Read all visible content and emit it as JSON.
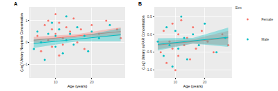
{
  "chart_data": [
    {
      "type": "scatter",
      "title": "A",
      "x_label": "Age (years)",
      "y_label": "(Log) Urinary Neopterin Concentration",
      "xlim": [
        3,
        29
      ],
      "xticks": [
        10,
        20
      ],
      "ylim": [
        -1.6,
        1.6
      ],
      "yticks": [
        -1,
        0,
        1
      ],
      "grid": true,
      "series": [
        {
          "name": "Female",
          "color": "#F8766D",
          "x": [
            5,
            6,
            7,
            8,
            8,
            9,
            9,
            10,
            10,
            11,
            11,
            12,
            12,
            13,
            14,
            15,
            16,
            17,
            18,
            20,
            22,
            24,
            27,
            28
          ],
          "values": [
            0.3,
            -0.4,
            0.8,
            0.1,
            1.0,
            -0.2,
            0.6,
            0.4,
            1.3,
            -0.6,
            0.9,
            0.2,
            -0.1,
            0.7,
            0.5,
            1.1,
            0.0,
            0.6,
            -0.3,
            0.8,
            0.4,
            1.0,
            0.6,
            0.2
          ],
          "fit": {
            "x": [
              4,
              16,
              28
            ],
            "values": [
              0.1,
              0.3,
              0.5
            ],
            "lower": [
              -0.05,
              0.22,
              0.3
            ],
            "upper": [
              0.25,
              0.38,
              0.7
            ]
          }
        },
        {
          "name": "Male",
          "color": "#00BFC4",
          "x": [
            4,
            5,
            6,
            7,
            8,
            9,
            10,
            10,
            11,
            12,
            13,
            13,
            14,
            15,
            16,
            18,
            19,
            20,
            22,
            25
          ],
          "values": [
            -0.3,
            0.5,
            0.0,
            -0.8,
            0.4,
            0.9,
            -0.2,
            0.3,
            0.6,
            -0.5,
            0.1,
            1.2,
            0.4,
            -0.1,
            0.7,
            0.3,
            -0.4,
            0.5,
            0.2,
            0.8
          ],
          "fit": {
            "x": [
              4,
              16,
              28
            ],
            "values": [
              -0.05,
              0.15,
              0.35
            ],
            "lower": [
              -0.25,
              0.05,
              0.05
            ],
            "upper": [
              0.15,
              0.25,
              0.65
            ]
          }
        }
      ]
    },
    {
      "type": "scatter",
      "title": "B",
      "x_label": "Age (years)",
      "y_label": "(Log) Urinary suPAR Concentration",
      "xlim": [
        3,
        29
      ],
      "xticks": [
        10,
        20
      ],
      "ylim": [
        -1.2,
        0.75
      ],
      "yticks": [
        {
          "value": -1,
          "label": "-1.0"
        },
        {
          "value": -0.5,
          "label": "-0.5"
        },
        {
          "value": 0,
          "label": "0.0"
        },
        {
          "value": 0.5,
          "label": "0.5"
        }
      ],
      "grid": true,
      "legend": "right",
      "legend_title": "Sex",
      "series": [
        {
          "name": "Female",
          "color": "#F8766D",
          "x": [
            5,
            6,
            7,
            8,
            9,
            9,
            10,
            11,
            11,
            12,
            13,
            14,
            15,
            16,
            17,
            19,
            21,
            23,
            26,
            28
          ],
          "values": [
            -0.5,
            0.1,
            -0.8,
            -0.2,
            0.3,
            -0.4,
            -1.0,
            0.0,
            -0.6,
            0.4,
            -0.3,
            -0.1,
            -0.7,
            0.2,
            -0.4,
            0.1,
            -0.2,
            -0.5,
            0.0,
            -0.3
          ],
          "fit": {
            "x": [
              4,
              16,
              28
            ],
            "values": [
              -0.3,
              -0.2,
              -0.1
            ],
            "lower": [
              -0.42,
              -0.26,
              -0.3
            ],
            "upper": [
              -0.18,
              -0.14,
              0.1
            ]
          }
        },
        {
          "name": "Male",
          "color": "#00BFC4",
          "x": [
            4,
            6,
            7,
            8,
            9,
            10,
            11,
            12,
            13,
            14,
            16,
            18,
            20,
            24,
            27
          ],
          "values": [
            -0.2,
            -0.6,
            0.2,
            -0.3,
            -0.9,
            0.1,
            -0.4,
            0.5,
            -0.1,
            -0.7,
            0.0,
            -0.3,
            0.3,
            -0.5,
            -0.1
          ],
          "fit": {
            "x": [
              4,
              16,
              28
            ],
            "values": [
              -0.28,
              -0.18,
              -0.08
            ],
            "lower": [
              -0.45,
              -0.26,
              -0.35
            ],
            "upper": [
              -0.11,
              -0.1,
              0.19
            ]
          }
        }
      ]
    }
  ]
}
